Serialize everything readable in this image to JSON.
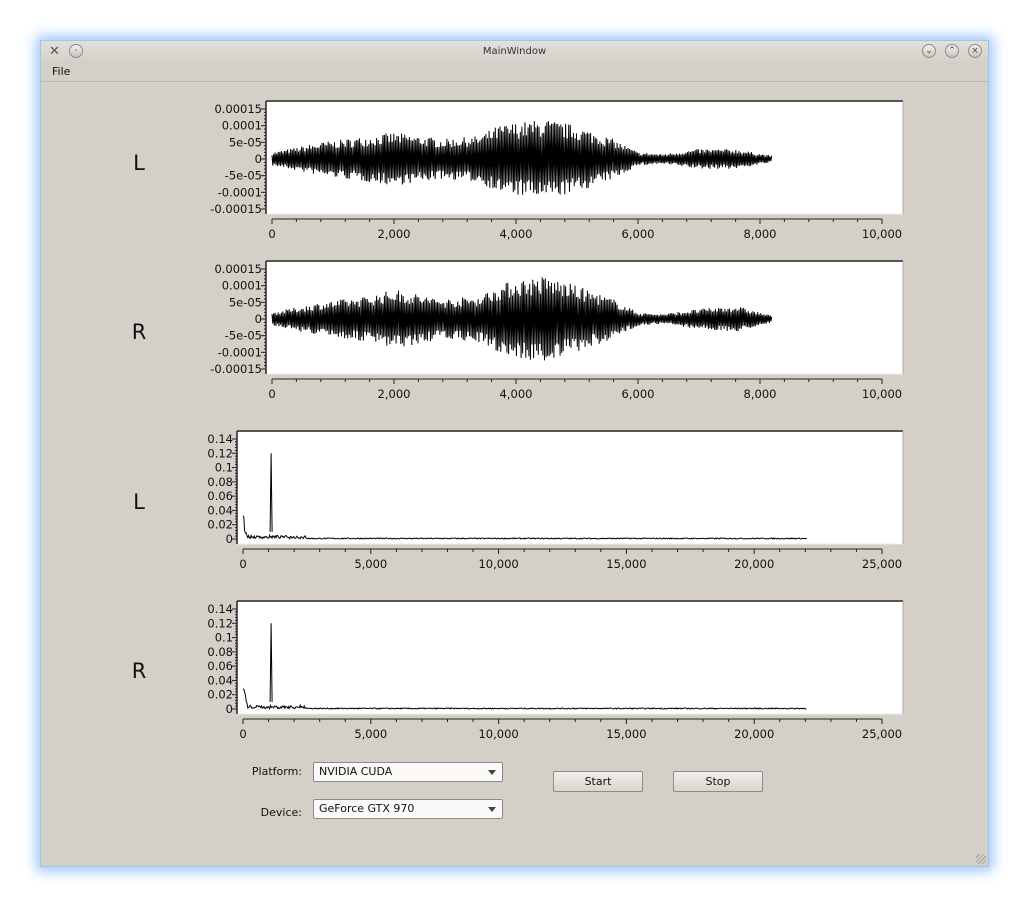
{
  "window": {
    "title": "MainWindow"
  },
  "menu": {
    "file": "File"
  },
  "waveform_ticks_y": [
    "0.00015",
    "0.0001",
    "5e-05",
    "0",
    "-5e-05",
    "-0.0001",
    "-0.00015"
  ],
  "waveform_ticks_x": [
    "0",
    "2,000",
    "4,000",
    "6,000",
    "8,000",
    "10,000"
  ],
  "spectrum_ticks_y": [
    "0.14",
    "0.12",
    "0.1",
    "0.08",
    "0.06",
    "0.04",
    "0.02",
    "0"
  ],
  "spectrum_ticks_x": [
    "0",
    "5,000",
    "10,000",
    "15,000",
    "20,000",
    "25,000"
  ],
  "chart_data": [
    {
      "type": "line",
      "channel": "L",
      "xlim": [
        0,
        10000
      ],
      "ylim": [
        -0.00015,
        0.00015
      ],
      "x_range_of_data": [
        0,
        8192
      ],
      "envelope": {
        "x": [
          0,
          800,
          1600,
          2000,
          2800,
          3400,
          3700,
          4000,
          4500,
          5000,
          5600,
          6000,
          6400,
          7000,
          7600,
          8192
        ],
        "amplitude": [
          2e-05,
          5e-05,
          7e-05,
          8e-05,
          6e-05,
          7e-05,
          0.0001,
          0.00011,
          0.00012,
          0.0001,
          6e-05,
          2e-05,
          1.5e-05,
          3e-05,
          3e-05,
          1e-05
        ]
      }
    },
    {
      "type": "line",
      "channel": "R",
      "xlim": [
        0,
        10000
      ],
      "ylim": [
        -0.00015,
        0.00015
      ],
      "x_range_of_data": [
        0,
        8192
      ],
      "envelope": {
        "x": [
          0,
          800,
          1600,
          2000,
          2800,
          3400,
          3700,
          4000,
          4500,
          5000,
          5600,
          6000,
          6400,
          7000,
          7600,
          8192
        ],
        "amplitude": [
          2e-05,
          5e-05,
          7e-05,
          9e-05,
          6e-05,
          7e-05,
          0.0001,
          0.00012,
          0.00013,
          0.0001,
          6e-05,
          2e-05,
          1.5e-05,
          3e-05,
          4e-05,
          1e-05
        ]
      }
    },
    {
      "type": "line",
      "channel": "L",
      "xlim": [
        0,
        25000
      ],
      "ylim": [
        0,
        0.14
      ],
      "x_range_of_data": [
        0,
        22050
      ],
      "peaks": [
        {
          "x": 0,
          "y": 0.04
        },
        {
          "x": 1100,
          "y": 0.12
        }
      ]
    },
    {
      "type": "line",
      "channel": "R",
      "xlim": [
        0,
        25000
      ],
      "ylim": [
        0,
        0.14
      ],
      "x_range_of_data": [
        0,
        22050
      ],
      "peaks": [
        {
          "x": 0,
          "y": 0.04
        },
        {
          "x": 1100,
          "y": 0.12
        }
      ]
    }
  ],
  "controls": {
    "platform_label": "Platform:",
    "platform_value": "NVIDIA CUDA",
    "device_label": "Device:",
    "device_value": "GeForce GTX 970",
    "start_label": "Start",
    "stop_label": "Stop"
  }
}
